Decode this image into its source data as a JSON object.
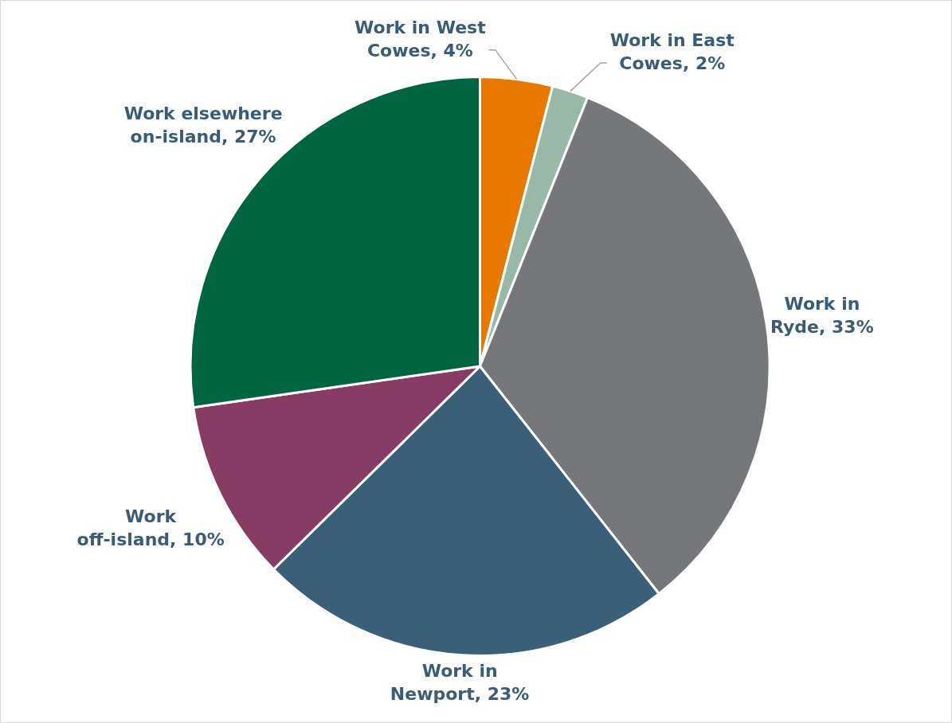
{
  "chart_data": {
    "type": "pie",
    "categories": [
      "Work in West Cowes",
      "Work in East Cowes",
      "Work in Ryde",
      "Work in Newport",
      "Work off-island",
      "Work elsewhere on-island"
    ],
    "values": [
      4,
      2,
      33,
      23,
      10,
      27
    ],
    "colors": [
      "#e97800",
      "#9ab8a8",
      "#75777a",
      "#3a6079",
      "#873c64",
      "#006642"
    ],
    "value_labels": [
      "4%",
      "2%",
      "33%",
      "23%",
      "10%",
      "27%"
    ],
    "legend": false
  }
}
